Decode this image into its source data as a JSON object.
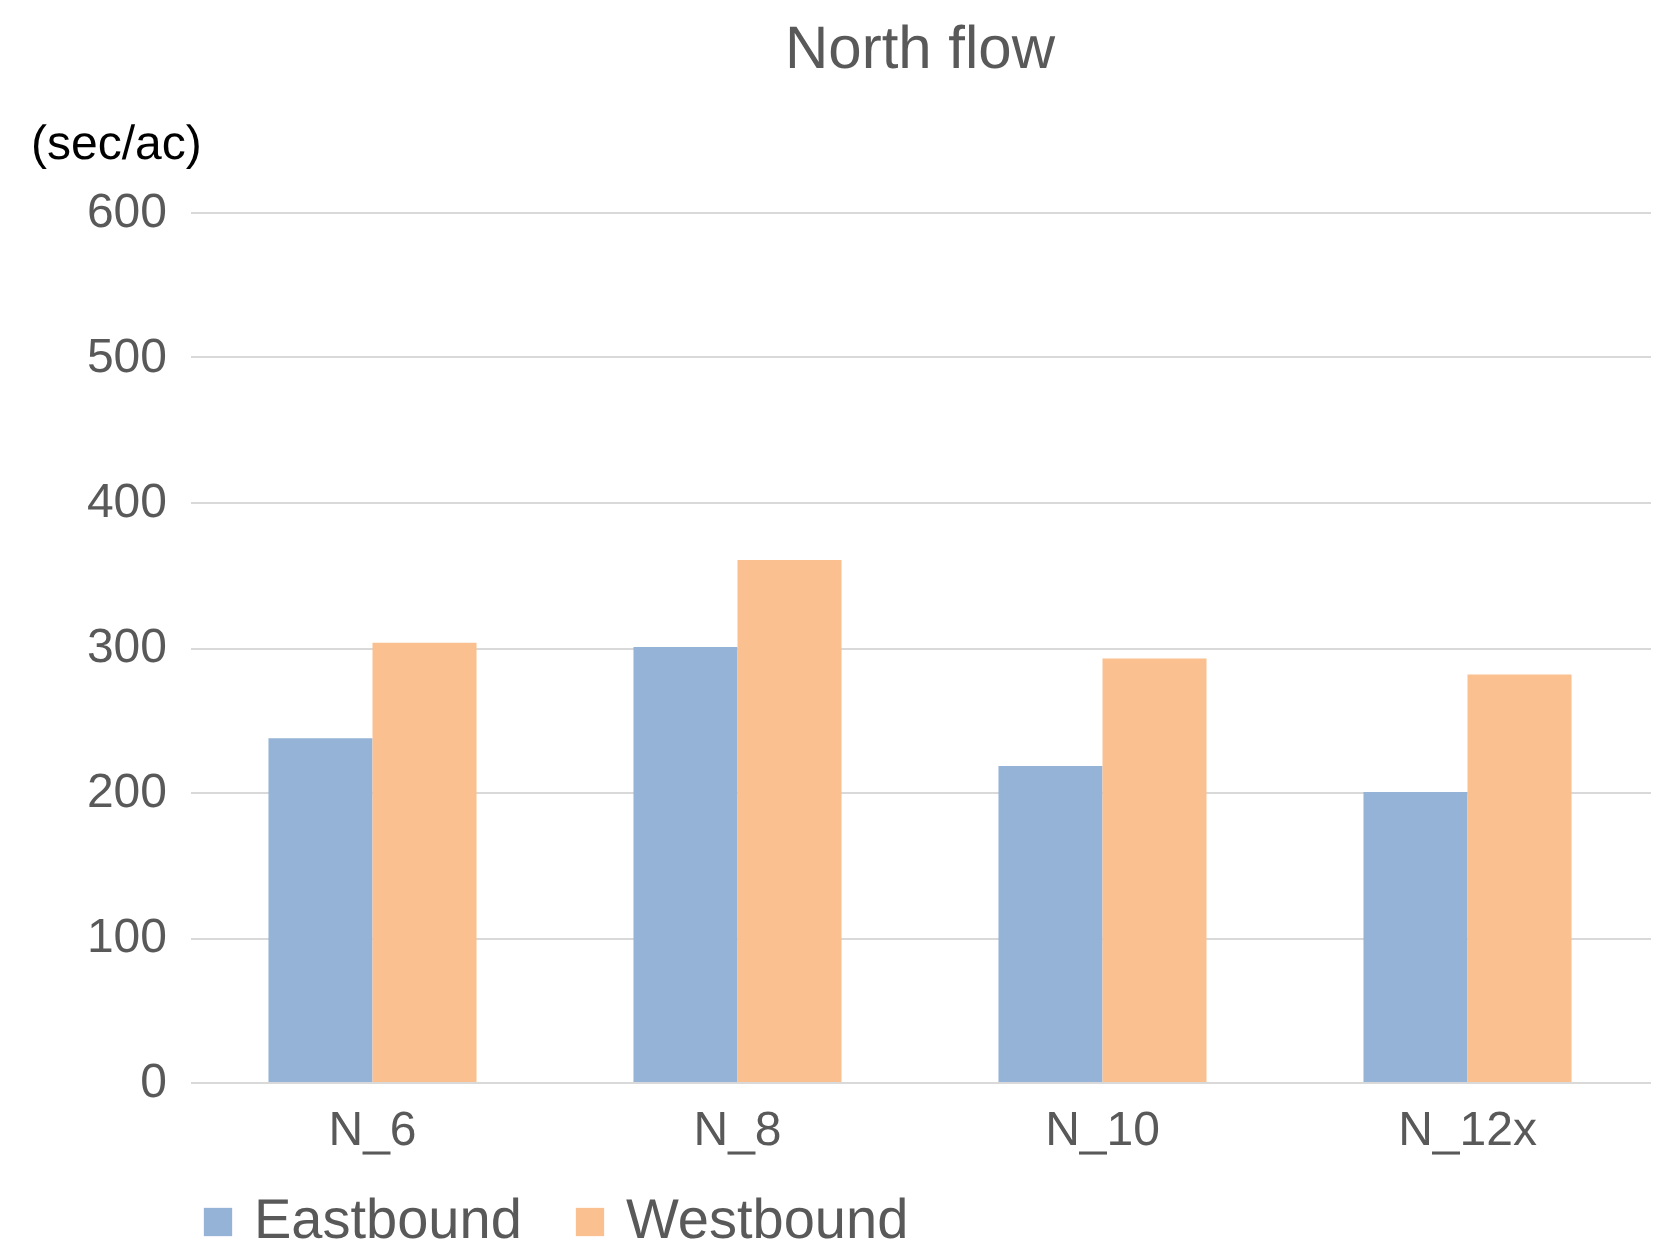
{
  "chart_data": {
    "type": "bar",
    "title": "North flow",
    "ylabel": "(sec/ac)",
    "categories": [
      "N_6",
      "N_8",
      "N_10",
      "N_12x"
    ],
    "series": [
      {
        "name": "Eastbound",
        "color": "#95b3d7",
        "values": [
          237,
          300,
          218,
          200
        ]
      },
      {
        "name": "Westbound",
        "color": "#fac090",
        "values": [
          303,
          360,
          292,
          281
        ]
      }
    ],
    "ylim": [
      0,
      600
    ],
    "yticks": [
      0,
      100,
      200,
      300,
      400,
      500,
      600
    ],
    "grid": "y",
    "legend": "bottom"
  }
}
